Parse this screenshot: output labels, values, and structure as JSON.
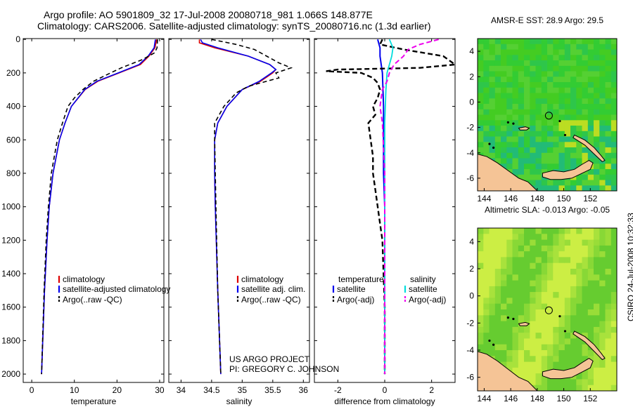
{
  "title_line1": "Argo profile: AO 5901809_32 17-Jul-2008 20080718_981 1.066S 148.877E",
  "title_line2": "Climatology: CARS2006. Satellite-adjusted climatology: synTS_20080716.nc (1.3d earlier)",
  "side_label": "CSIRO 24-Jul-2008 10:32:33",
  "project_line1": "US ARGO PROJECT",
  "project_line2": "PI: GREGORY C. JOHNSON",
  "colors": {
    "climatology": "#dd0000",
    "satellite": "#0000ee",
    "argo": "#000000",
    "sal_satellite": "#00dddd",
    "sal_argo": "#ee00ee",
    "land": "#f5c496",
    "ocean_sst": "#33cc22",
    "ocean_sla": "#88dd33"
  },
  "chart_data": [
    {
      "type": "line",
      "name": "temperature-profile",
      "xlabel": "temperature",
      "ylabel": "",
      "xlim": [
        -2,
        31
      ],
      "ylim": [
        2050,
        -5
      ],
      "xticks": [
        0,
        10,
        20,
        30
      ],
      "yticks": [
        0,
        200,
        400,
        600,
        800,
        1000,
        1200,
        1400,
        1600,
        1800,
        2000
      ],
      "legend": [
        "climatology",
        "satellite-adjusted climatology",
        "Argo(..raw -QC)"
      ],
      "series": [
        {
          "name": "climatology",
          "depth": [
            0,
            50,
            100,
            150,
            200,
            250,
            300,
            400,
            500,
            600,
            800,
            1000,
            1200,
            1500,
            2000
          ],
          "values": [
            29.3,
            28.9,
            27.5,
            25.5,
            20.5,
            15.5,
            12.5,
            9.3,
            7.8,
            6.5,
            5.0,
            4.1,
            3.6,
            3.0,
            2.3
          ]
        },
        {
          "name": "satellite-adjusted climatology",
          "depth": [
            0,
            50,
            100,
            150,
            200,
            250,
            300,
            400,
            500,
            600,
            800,
            1000,
            1200,
            1500,
            2000
          ],
          "values": [
            29.0,
            28.7,
            27.3,
            25.2,
            20.3,
            15.3,
            12.4,
            9.3,
            7.8,
            6.5,
            5.0,
            4.1,
            3.6,
            3.0,
            2.3
          ]
        },
        {
          "name": "Argo(..raw -QC)",
          "depth": [
            0,
            50,
            80,
            120,
            170,
            200,
            250,
            300,
            350,
            400,
            500,
            600,
            700,
            800,
            1000,
            1200,
            1500,
            2000
          ],
          "values": [
            29.5,
            29.4,
            28.8,
            26.0,
            21.0,
            18.5,
            14.5,
            12.0,
            10.0,
            8.5,
            7.2,
            6.0,
            5.3,
            4.6,
            3.9,
            3.4,
            2.9,
            2.3
          ]
        }
      ]
    },
    {
      "type": "line",
      "name": "salinity-profile",
      "xlabel": "salinity",
      "xlim": [
        33.8,
        36.1
      ],
      "ylim": [
        2050,
        -5
      ],
      "xticks": [
        34,
        34.5,
        35,
        35.5,
        36
      ],
      "legend": [
        "climatology",
        "satellite adj. clim.",
        "Argo(..raw -QC)"
      ],
      "series": [
        {
          "name": "climatology",
          "depth": [
            0,
            20,
            50,
            100,
            150,
            180,
            200,
            250,
            300,
            400,
            500,
            600,
            800,
            1000,
            1500,
            2000
          ],
          "values": [
            34.3,
            34.3,
            34.55,
            35.1,
            35.45,
            35.55,
            35.5,
            35.3,
            35.0,
            34.75,
            34.6,
            34.55,
            34.55,
            34.56,
            34.6,
            34.65
          ]
        },
        {
          "name": "satellite adj. clim.",
          "depth": [
            0,
            20,
            50,
            100,
            150,
            180,
            200,
            250,
            300,
            400,
            500,
            600,
            800,
            1000,
            1500,
            2000
          ],
          "values": [
            34.32,
            34.35,
            34.6,
            35.1,
            35.45,
            35.55,
            35.48,
            35.28,
            35.0,
            34.75,
            34.6,
            34.55,
            34.55,
            34.56,
            34.6,
            34.65
          ]
        },
        {
          "name": "Argo(..raw -QC)",
          "depth": [
            0,
            30,
            60,
            100,
            140,
            170,
            200,
            230,
            280,
            320,
            400,
            500,
            600,
            800,
            1000,
            1500,
            2000
          ],
          "values": [
            34.5,
            34.9,
            35.2,
            35.4,
            35.6,
            35.8,
            35.55,
            35.6,
            35.1,
            34.9,
            34.7,
            34.55,
            34.55,
            34.56,
            34.57,
            34.6,
            34.65
          ]
        }
      ]
    },
    {
      "type": "line",
      "name": "difference-from-climatology",
      "xlabel": "difference from climatology",
      "xlim": [
        -3,
        3
      ],
      "ylim": [
        2050,
        -5
      ],
      "xticks": [
        -2,
        0,
        2
      ],
      "legend_header_temp": "temperature",
      "legend_header_sal": "salinity",
      "legend": [
        "satellite",
        "Argo(-adj)",
        "satellite",
        "Argo(-adj)"
      ],
      "series": [
        {
          "name": "temperature satellite",
          "depth": [
            0,
            50,
            100,
            200,
            400,
            600,
            800,
            1000,
            1500,
            2000
          ],
          "values": [
            -0.3,
            -0.2,
            -0.2,
            -0.1,
            -0.05,
            -0.05,
            -0.05,
            0,
            0,
            0
          ]
        },
        {
          "name": "temperature Argo(-adj)",
          "depth": [
            0,
            30,
            60,
            100,
            150,
            170,
            180,
            190,
            200,
            230,
            260,
            300,
            350,
            400,
            450,
            500,
            600,
            700,
            800,
            900,
            1000,
            1100,
            1200,
            1400,
            1600,
            2000
          ],
          "values": [
            -0.1,
            -0.2,
            0.8,
            2.5,
            3.0,
            1.5,
            -2.0,
            -2.5,
            -1.0,
            -0.5,
            -0.3,
            -0.2,
            -0.3,
            -0.5,
            -0.4,
            -0.7,
            -0.6,
            -0.5,
            -0.5,
            -0.4,
            -0.3,
            -0.2,
            -0.1,
            -0.05,
            0,
            0
          ]
        },
        {
          "name": "salinity satellite",
          "depth": [
            0,
            50,
            100,
            200,
            300,
            500,
            1000,
            2000
          ],
          "values": [
            0.2,
            0.35,
            0.3,
            0.1,
            0.05,
            0,
            0,
            0
          ]
        },
        {
          "name": "salinity Argo(-adj)",
          "depth": [
            0,
            30,
            60,
            100,
            150,
            200,
            250,
            300,
            400,
            500,
            800,
            1000,
            2000
          ],
          "values": [
            2.3,
            1.5,
            1.0,
            0.8,
            0.4,
            0.2,
            0.1,
            -0.1,
            -0.2,
            -0.1,
            0,
            0,
            0
          ]
        }
      ]
    },
    {
      "type": "heatmap",
      "name": "sst-map",
      "title": "AMSR-E SST: 28.9 Argo: 29.5",
      "xlim": [
        143.5,
        154
      ],
      "ylim": [
        -7,
        5
      ],
      "xticks": [
        144,
        146,
        148,
        150,
        152
      ],
      "yticks": [
        4,
        2,
        0,
        -2,
        -4,
        -6
      ],
      "marker_lon": 148.877,
      "marker_lat": -1.066
    },
    {
      "type": "heatmap",
      "name": "sla-map",
      "title": "Altimetric SLA: -0.013 Argo: -0.05",
      "xlim": [
        143.5,
        154
      ],
      "ylim": [
        -7,
        5
      ],
      "xticks": [
        144,
        146,
        148,
        150,
        152
      ],
      "yticks": [
        4,
        2,
        0,
        -2,
        -4,
        -6
      ],
      "marker_lon": 148.877,
      "marker_lat": -1.066
    }
  ]
}
